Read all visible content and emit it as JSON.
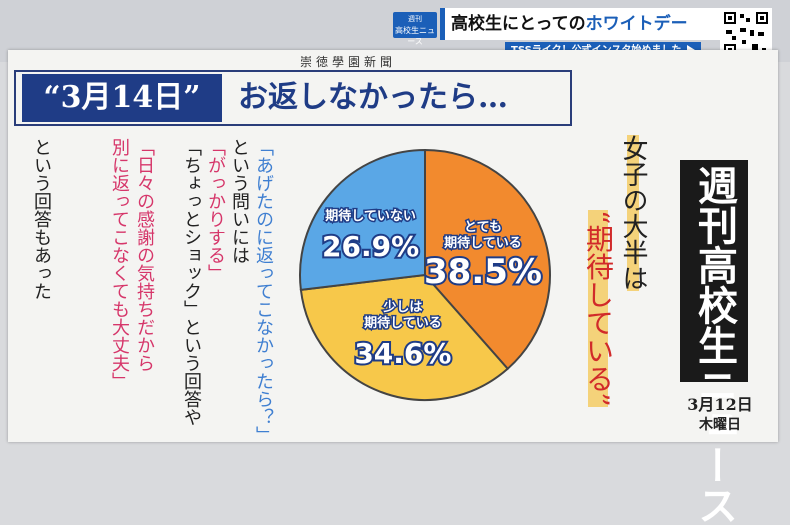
{
  "top": {
    "badge_top": "週刊",
    "badge_bottom": "高校生ニュース",
    "headline_a": "高校生にとっての",
    "headline_b": "ホワイトデー",
    "subline": "TSSライク！公式インスタ始めました"
  },
  "paper": {
    "masthead": "崇徳學園新聞",
    "title_date": "“3月14日”",
    "title_rest": "お返しなかったら…",
    "col1": "「あげたのに返ってこなかったら？」",
    "col2": "という問いには",
    "col3": "「がっかりする」",
    "col4": "「ちょっとショック」という回答や",
    "col5": "「日々の感謝の気持ちだから",
    "col6": "別に返ってこなくても大丈夫」",
    "col7": "という回答もあった",
    "right_heading_1": "女子の大半は",
    "right_heading_2": "“期待している”",
    "weekly": "週刊高校生ニュース",
    "issue_date": "3月12日",
    "issue_day": "木曜日"
  },
  "chart_data": {
    "type": "pie",
    "slices": [
      {
        "label": "とても期待している",
        "value": 38.5,
        "display": "38.5%",
        "color": "#f28a2e"
      },
      {
        "label": "少しは期待している",
        "value": 34.6,
        "display": "34.6%",
        "color": "#f7c84a"
      },
      {
        "label": "期待していない",
        "value": 26.9,
        "display": "26.9%",
        "color": "#5aa7e6"
      }
    ]
  }
}
